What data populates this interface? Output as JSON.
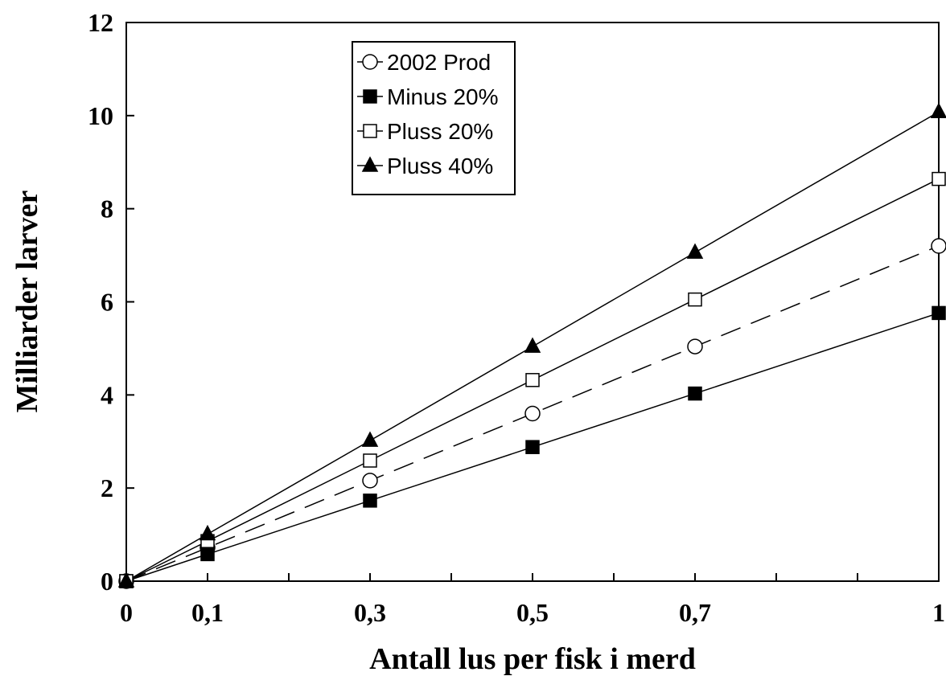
{
  "chart_data": {
    "type": "line",
    "title": "",
    "xlabel": "Antall lus per fisk i merd",
    "ylabel": "Milliarder larver",
    "xlim": [
      0,
      1
    ],
    "ylim": [
      0,
      12
    ],
    "x_ticks": [
      0,
      0.1,
      0.2,
      0.3,
      0.4,
      0.5,
      0.6,
      0.7,
      0.8,
      0.9,
      1
    ],
    "x_tick_labels": [
      {
        "value": 0,
        "label": "0"
      },
      {
        "value": 0.1,
        "label": "0,1"
      },
      {
        "value": 0.3,
        "label": "0,3"
      },
      {
        "value": 0.5,
        "label": "0,5"
      },
      {
        "value": 0.7,
        "label": "0,7"
      },
      {
        "value": 1,
        "label": "1"
      }
    ],
    "y_ticks": [
      0,
      2,
      4,
      6,
      8,
      10,
      12
    ],
    "y_tick_labels": [
      "0",
      "2",
      "4",
      "6",
      "8",
      "10",
      "12"
    ],
    "grid": false,
    "legend_position": "top-center",
    "x": [
      0,
      0.1,
      0.3,
      0.5,
      0.7,
      1
    ],
    "series": [
      {
        "name": "2002 Prod",
        "marker": "circle-open",
        "line": "dashed",
        "values": [
          0,
          0.72,
          2.16,
          3.6,
          5.04,
          7.2
        ]
      },
      {
        "name": "Minus 20%",
        "marker": "square-filled",
        "line": "solid",
        "values": [
          0,
          0.58,
          1.73,
          2.88,
          4.03,
          5.76
        ]
      },
      {
        "name": "Pluss 20%",
        "marker": "square-open",
        "line": "solid",
        "values": [
          0,
          0.86,
          2.59,
          4.32,
          6.05,
          8.64
        ]
      },
      {
        "name": "Pluss 40%",
        "marker": "triangle-filled",
        "line": "solid",
        "values": [
          0,
          1.01,
          3.02,
          5.04,
          7.06,
          10.08
        ]
      }
    ],
    "colors": {
      "line": "#000000",
      "marker": "#000000",
      "background": "#ffffff"
    }
  }
}
